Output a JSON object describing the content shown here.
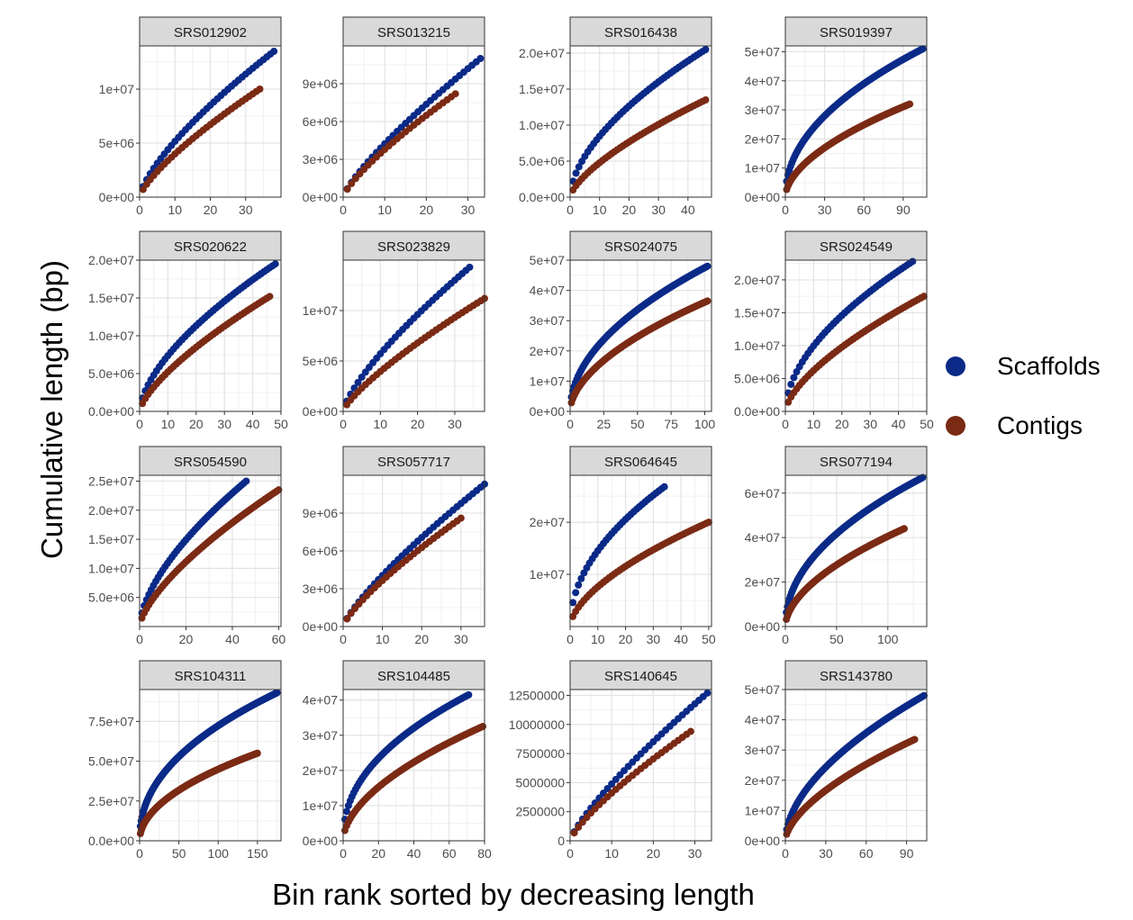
{
  "xlabel": "Bin rank sorted by decreasing length",
  "ylabel": "Cumulative length (bp)",
  "legend": [
    {
      "label": "Scaffolds",
      "color": "#0b2a88"
    },
    {
      "label": "Contigs",
      "color": "#7b2a14"
    }
  ],
  "chart_data": [
    {
      "type": "scatter",
      "title": "SRS012902",
      "xlim": [
        0,
        40
      ],
      "ylim": [
        0,
        14000000
      ],
      "xticks": [
        0,
        10,
        20,
        30
      ],
      "xtick_labels": [
        "0",
        "10",
        "20",
        "30"
      ],
      "yticks": [
        0,
        5000000,
        10000000
      ],
      "ytick_labels": [
        "0e+00",
        "5e+06",
        "1e+07"
      ],
      "series": [
        {
          "name": "Scaffolds",
          "n": 38,
          "end": 13500000,
          "shape": 0.72
        },
        {
          "name": "Contigs",
          "n": 34,
          "end": 10000000,
          "shape": 0.75
        }
      ]
    },
    {
      "type": "scatter",
      "title": "SRS013215",
      "xlim": [
        0,
        34
      ],
      "ylim": [
        0,
        12000000
      ],
      "xticks": [
        0,
        10,
        20,
        30
      ],
      "xtick_labels": [
        "0",
        "10",
        "20",
        "30"
      ],
      "yticks": [
        0,
        3000000,
        6000000,
        9000000
      ],
      "ytick_labels": [
        "0e+00",
        "3e+06",
        "6e+06",
        "9e+06"
      ],
      "series": [
        {
          "name": "Scaffolds",
          "n": 33,
          "end": 11000000,
          "shape": 0.8
        },
        {
          "name": "Contigs",
          "n": 27,
          "end": 8200000,
          "shape": 0.78
        }
      ]
    },
    {
      "type": "scatter",
      "title": "SRS016438",
      "xlim": [
        0,
        48
      ],
      "ylim": [
        0,
        21000000
      ],
      "xticks": [
        0,
        10,
        20,
        30,
        40
      ],
      "xtick_labels": [
        "0",
        "10",
        "20",
        "30",
        "40"
      ],
      "yticks": [
        0,
        5000000,
        10000000,
        15000000,
        20000000
      ],
      "ytick_labels": [
        "0.0e+00",
        "5.0e+06",
        "1.0e+07",
        "1.5e+07",
        "2.0e+07"
      ],
      "series": [
        {
          "name": "Scaffolds",
          "n": 46,
          "end": 20500000,
          "shape": 0.58
        },
        {
          "name": "Contigs",
          "n": 46,
          "end": 13500000,
          "shape": 0.68
        }
      ]
    },
    {
      "type": "scatter",
      "title": "SRS019397",
      "xlim": [
        0,
        108
      ],
      "ylim": [
        0,
        52000000
      ],
      "xticks": [
        0,
        30,
        60,
        90
      ],
      "xtick_labels": [
        "0",
        "30",
        "60",
        "90"
      ],
      "yticks": [
        0,
        10000000,
        20000000,
        30000000,
        40000000,
        50000000
      ],
      "ytick_labels": [
        "0e+00",
        "1e+07",
        "2e+07",
        "3e+07",
        "4e+07",
        "5e+07"
      ],
      "series": [
        {
          "name": "Scaffolds",
          "n": 105,
          "end": 51000000,
          "shape": 0.48
        },
        {
          "name": "Contigs",
          "n": 95,
          "end": 32000000,
          "shape": 0.55
        }
      ]
    },
    {
      "type": "scatter",
      "title": "SRS020622",
      "xlim": [
        0,
        50
      ],
      "ylim": [
        0,
        20000000
      ],
      "xticks": [
        0,
        10,
        20,
        30,
        40,
        50
      ],
      "xtick_labels": [
        "0",
        "10",
        "20",
        "30",
        "40",
        "50"
      ],
      "yticks": [
        0,
        5000000,
        10000000,
        15000000,
        20000000
      ],
      "ytick_labels": [
        "0.0e+00",
        "5.0e+06",
        "1.0e+07",
        "1.5e+07",
        "2.0e+07"
      ],
      "series": [
        {
          "name": "Scaffolds",
          "n": 48,
          "end": 19500000,
          "shape": 0.62
        },
        {
          "name": "Contigs",
          "n": 46,
          "end": 15200000,
          "shape": 0.7
        }
      ]
    },
    {
      "type": "scatter",
      "title": "SRS023829",
      "xlim": [
        0,
        38
      ],
      "ylim": [
        0,
        15000000
      ],
      "xticks": [
        0,
        10,
        20,
        30
      ],
      "xtick_labels": [
        "0",
        "10",
        "20",
        "30"
      ],
      "yticks": [
        0,
        5000000,
        10000000
      ],
      "ytick_labels": [
        "0e+00",
        "5e+06",
        "1e+07"
      ],
      "series": [
        {
          "name": "Scaffolds",
          "n": 34,
          "end": 14300000,
          "shape": 0.75
        },
        {
          "name": "Contigs",
          "n": 38,
          "end": 11200000,
          "shape": 0.78
        }
      ]
    },
    {
      "type": "scatter",
      "title": "SRS024075",
      "xlim": [
        0,
        105
      ],
      "ylim": [
        0,
        50000000
      ],
      "xticks": [
        0,
        25,
        50,
        75,
        100
      ],
      "xtick_labels": [
        "0",
        "25",
        "50",
        "75",
        "100"
      ],
      "yticks": [
        0,
        10000000,
        20000000,
        30000000,
        40000000,
        50000000
      ],
      "ytick_labels": [
        "0e+00",
        "1e+07",
        "2e+07",
        "3e+07",
        "4e+07",
        "5e+07"
      ],
      "series": [
        {
          "name": "Scaffolds",
          "n": 102,
          "end": 48000000,
          "shape": 0.5
        },
        {
          "name": "Contigs",
          "n": 102,
          "end": 36500000,
          "shape": 0.55
        }
      ]
    },
    {
      "type": "scatter",
      "title": "SRS024549",
      "xlim": [
        0,
        50
      ],
      "ylim": [
        0,
        23000000
      ],
      "xticks": [
        0,
        10,
        20,
        30,
        40,
        50
      ],
      "xtick_labels": [
        "0",
        "10",
        "20",
        "30",
        "40",
        "50"
      ],
      "yticks": [
        0,
        5000000,
        10000000,
        15000000,
        20000000
      ],
      "ytick_labels": [
        "0.0e+00",
        "5.0e+06",
        "1.0e+07",
        "1.5e+07",
        "2.0e+07"
      ],
      "series": [
        {
          "name": "Scaffolds",
          "n": 45,
          "end": 22800000,
          "shape": 0.55
        },
        {
          "name": "Contigs",
          "n": 49,
          "end": 17500000,
          "shape": 0.65
        }
      ]
    },
    {
      "type": "scatter",
      "title": "SRS054590",
      "xlim": [
        0,
        61
      ],
      "ylim": [
        0,
        26000000
      ],
      "xticks": [
        0,
        20,
        40,
        60
      ],
      "xtick_labels": [
        "0",
        "20",
        "40",
        "60"
      ],
      "yticks": [
        5000000,
        10000000,
        15000000,
        20000000,
        25000000
      ],
      "ytick_labels": [
        "5.0e+06",
        "1.0e+07",
        "1.5e+07",
        "2.0e+07",
        "2.5e+07"
      ],
      "series": [
        {
          "name": "Scaffolds",
          "n": 46,
          "end": 25000000,
          "shape": 0.62
        },
        {
          "name": "Contigs",
          "n": 60,
          "end": 23500000,
          "shape": 0.68
        }
      ]
    },
    {
      "type": "scatter",
      "title": "SRS057717",
      "xlim": [
        0,
        36
      ],
      "ylim": [
        0,
        12000000
      ],
      "xticks": [
        0,
        10,
        20,
        30
      ],
      "xtick_labels": [
        "0",
        "10",
        "20",
        "30"
      ],
      "yticks": [
        0,
        3000000,
        6000000,
        9000000
      ],
      "ytick_labels": [
        "0e+00",
        "3e+06",
        "6e+06",
        "9e+06"
      ],
      "series": [
        {
          "name": "Scaffolds",
          "n": 36,
          "end": 11300000,
          "shape": 0.8
        },
        {
          "name": "Contigs",
          "n": 30,
          "end": 8600000,
          "shape": 0.78
        }
      ]
    },
    {
      "type": "scatter",
      "title": "SRS064645",
      "xlim": [
        0,
        51
      ],
      "ylim": [
        0,
        29000000
      ],
      "xticks": [
        0,
        10,
        20,
        30,
        40,
        50
      ],
      "xtick_labels": [
        "0",
        "10",
        "20",
        "30",
        "40",
        "50"
      ],
      "yticks": [
        10000000,
        20000000
      ],
      "ytick_labels": [
        "1e+07",
        "2e+07"
      ],
      "series": [
        {
          "name": "Scaffolds",
          "n": 34,
          "end": 26800000,
          "shape": 0.5
        },
        {
          "name": "Contigs",
          "n": 50,
          "end": 20000000,
          "shape": 0.6
        }
      ]
    },
    {
      "type": "scatter",
      "title": "SRS077194",
      "xlim": [
        0,
        138
      ],
      "ylim": [
        0,
        68000000
      ],
      "xticks": [
        0,
        50,
        100
      ],
      "xtick_labels": [
        "0",
        "50",
        "100"
      ],
      "yticks": [
        0,
        20000000,
        40000000,
        60000000
      ],
      "ytick_labels": [
        "0e+00",
        "2e+07",
        "4e+07",
        "6e+07"
      ],
      "series": [
        {
          "name": "Scaffolds",
          "n": 134,
          "end": 67000000,
          "shape": 0.48
        },
        {
          "name": "Contigs",
          "n": 116,
          "end": 44000000,
          "shape": 0.55
        }
      ]
    },
    {
      "type": "scatter",
      "title": "SRS104311",
      "xlim": [
        0,
        180
      ],
      "ylim": [
        0,
        95000000
      ],
      "xticks": [
        0,
        50,
        100,
        150
      ],
      "xtick_labels": [
        "0",
        "50",
        "100",
        "150"
      ],
      "yticks": [
        0,
        25000000,
        50000000,
        75000000
      ],
      "ytick_labels": [
        "0.0e+00",
        "2.5e+07",
        "5.0e+07",
        "7.5e+07"
      ],
      "series": [
        {
          "name": "Scaffolds",
          "n": 175,
          "end": 93000000,
          "shape": 0.45
        },
        {
          "name": "Contigs",
          "n": 150,
          "end": 55000000,
          "shape": 0.5
        }
      ]
    },
    {
      "type": "scatter",
      "title": "SRS104485",
      "xlim": [
        0,
        80
      ],
      "ylim": [
        0,
        43000000
      ],
      "xticks": [
        0,
        20,
        40,
        60,
        80
      ],
      "xtick_labels": [
        "0",
        "20",
        "40",
        "60",
        "80"
      ],
      "yticks": [
        0,
        10000000,
        20000000,
        30000000,
        40000000
      ],
      "ytick_labels": [
        "0e+00",
        "1e+07",
        "2e+07",
        "3e+07",
        "4e+07"
      ],
      "series": [
        {
          "name": "Scaffolds",
          "n": 71,
          "end": 41500000,
          "shape": 0.45
        },
        {
          "name": "Contigs",
          "n": 79,
          "end": 32500000,
          "shape": 0.55
        }
      ]
    },
    {
      "type": "scatter",
      "title": "SRS140645",
      "xlim": [
        0,
        34
      ],
      "ylim": [
        0,
        13000000
      ],
      "xticks": [
        0,
        10,
        20,
        30
      ],
      "xtick_labels": [
        "0",
        "10",
        "20",
        "30"
      ],
      "yticks": [
        0,
        2500000,
        5000000,
        7500000,
        10000000,
        12500000
      ],
      "ytick_labels": [
        "0",
        "2500000",
        "5000000",
        "7500000",
        "10000000",
        "12500000"
      ],
      "series": [
        {
          "name": "Scaffolds",
          "n": 33,
          "end": 12700000,
          "shape": 0.8
        },
        {
          "name": "Contigs",
          "n": 29,
          "end": 9400000,
          "shape": 0.78
        }
      ]
    },
    {
      "type": "scatter",
      "title": "SRS143780",
      "xlim": [
        0,
        105
      ],
      "ylim": [
        0,
        50000000
      ],
      "xticks": [
        0,
        30,
        60,
        90
      ],
      "xtick_labels": [
        "0",
        "30",
        "60",
        "90"
      ],
      "yticks": [
        0,
        10000000,
        20000000,
        30000000,
        40000000,
        50000000
      ],
      "ytick_labels": [
        "0e+00",
        "1e+07",
        "2e+07",
        "3e+07",
        "4e+07",
        "5e+07"
      ],
      "series": [
        {
          "name": "Scaffolds",
          "n": 103,
          "end": 48000000,
          "shape": 0.55
        },
        {
          "name": "Contigs",
          "n": 96,
          "end": 33500000,
          "shape": 0.6
        }
      ]
    }
  ]
}
